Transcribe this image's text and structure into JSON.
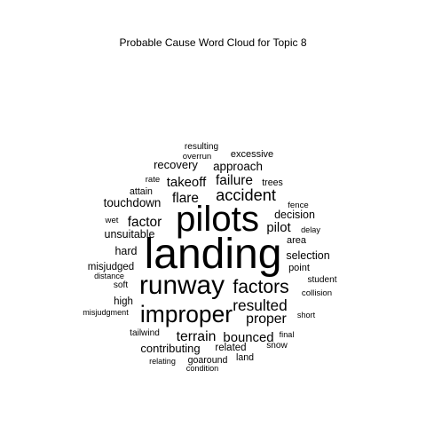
{
  "chart_data": {
    "type": "wordcloud",
    "title": "Probable Cause Word Cloud for Topic 8",
    "color": "#000000",
    "words": [
      {
        "word": "landing",
        "weight": 100
      },
      {
        "word": "pilots",
        "weight": 84
      },
      {
        "word": "runway",
        "weight": 62
      },
      {
        "word": "improper",
        "weight": 55
      },
      {
        "word": "factors",
        "weight": 44
      },
      {
        "word": "accident",
        "weight": 38
      },
      {
        "word": "resulted",
        "weight": 36
      },
      {
        "word": "terrain",
        "weight": 33
      },
      {
        "word": "proper",
        "weight": 33
      },
      {
        "word": "factor",
        "weight": 32
      },
      {
        "word": "failure",
        "weight": 32
      },
      {
        "word": "flare",
        "weight": 32
      },
      {
        "word": "takeoff",
        "weight": 31
      },
      {
        "word": "bounced",
        "weight": 31
      },
      {
        "word": "pilot",
        "weight": 31
      },
      {
        "word": "touchdown",
        "weight": 28
      },
      {
        "word": "approach",
        "weight": 28
      },
      {
        "word": "recovery",
        "weight": 27
      },
      {
        "word": "contributing",
        "weight": 27
      },
      {
        "word": "decision",
        "weight": 26
      },
      {
        "word": "selection",
        "weight": 26
      },
      {
        "word": "hard",
        "weight": 26
      },
      {
        "word": "unsuitable",
        "weight": 26
      },
      {
        "word": "misjudged",
        "weight": 24
      },
      {
        "word": "high",
        "weight": 24
      },
      {
        "word": "related",
        "weight": 24
      },
      {
        "word": "excessive",
        "weight": 23
      },
      {
        "word": "area",
        "weight": 23
      },
      {
        "word": "point",
        "weight": 23
      },
      {
        "word": "attain",
        "weight": 22
      },
      {
        "word": "trees",
        "weight": 22
      },
      {
        "word": "goaround",
        "weight": 22
      },
      {
        "word": "land",
        "weight": 22
      },
      {
        "word": "resulting",
        "weight": 21
      },
      {
        "word": "tailwind",
        "weight": 21
      },
      {
        "word": "snow",
        "weight": 21
      },
      {
        "word": "student",
        "weight": 21
      },
      {
        "word": "soft",
        "weight": 21
      },
      {
        "word": "collision",
        "weight": 20
      },
      {
        "word": "rate",
        "weight": 20
      },
      {
        "word": "overrun",
        "weight": 20
      },
      {
        "word": "wet",
        "weight": 20
      },
      {
        "word": "fence",
        "weight": 20
      },
      {
        "word": "delay",
        "weight": 19
      },
      {
        "word": "distance",
        "weight": 19
      },
      {
        "word": "misjudgment",
        "weight": 19
      },
      {
        "word": "short",
        "weight": 19
      },
      {
        "word": "final",
        "weight": 19
      },
      {
        "word": "relating",
        "weight": 19
      },
      {
        "word": "condition",
        "weight": 19
      }
    ]
  }
}
